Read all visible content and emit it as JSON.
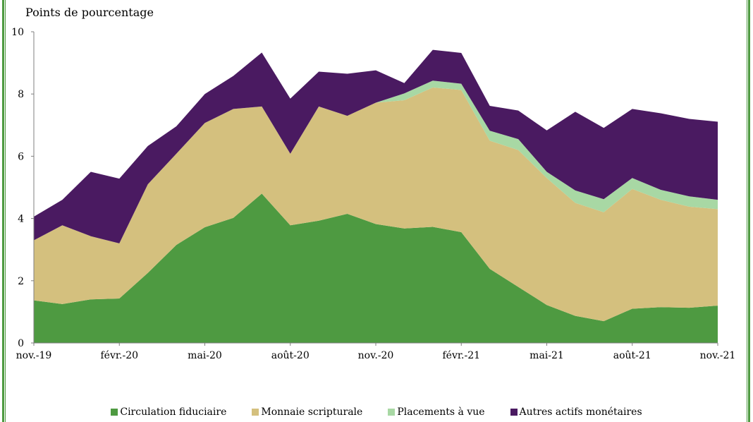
{
  "chart_data": {
    "type": "area",
    "stacked": true,
    "ylabel": "Points de pourcentage",
    "ylim": [
      0,
      10
    ],
    "yticks": [
      0,
      2,
      4,
      6,
      8,
      10
    ],
    "x_tick_labels": [
      "nov.-19",
      "févr.-20",
      "mai-20",
      "août-20",
      "nov.-20",
      "févr.-21",
      "mai-21",
      "août-21",
      "nov.-21"
    ],
    "x_tick_indices": [
      0,
      3,
      6,
      9,
      12,
      15,
      18,
      21,
      24
    ],
    "x": [
      "nov.-19",
      "déc.-19",
      "janv.-20",
      "févr.-20",
      "mars-20",
      "avr.-20",
      "mai-20",
      "juin-20",
      "juil.-20",
      "août-20",
      "sept.-20",
      "oct.-20",
      "nov.-20",
      "déc.-20",
      "janv.-21",
      "févr.-21",
      "mars-21",
      "avr.-21",
      "mai-21",
      "juin-21",
      "juil.-21",
      "août-21",
      "sept.-21",
      "oct.-21",
      "nov.-21"
    ],
    "series": [
      {
        "name": "Circulation fiduciaire",
        "color": "#4e9a41",
        "values": [
          1.37,
          1.25,
          1.4,
          1.43,
          2.25,
          3.15,
          3.72,
          4.02,
          4.8,
          3.78,
          3.93,
          4.15,
          3.82,
          3.68,
          3.73,
          3.56,
          2.38,
          1.8,
          1.22,
          0.87,
          0.7,
          1.1,
          1.15,
          1.13,
          1.2
        ]
      },
      {
        "name": "Monnaie scripturale",
        "color": "#d4c07e",
        "values": [
          1.93,
          2.53,
          2.03,
          1.77,
          2.85,
          2.93,
          3.35,
          3.5,
          2.8,
          2.3,
          3.67,
          3.15,
          3.9,
          4.12,
          4.48,
          4.57,
          4.12,
          4.4,
          4.08,
          3.63,
          3.5,
          3.85,
          3.45,
          3.25,
          3.1
        ]
      },
      {
        "name": "Placements à vue",
        "color": "#a8d8a4",
        "values": [
          0,
          0,
          0,
          0,
          0,
          0,
          0,
          0,
          0,
          0,
          0,
          0,
          0,
          0.22,
          0.22,
          0.2,
          0.32,
          0.35,
          0.2,
          0.4,
          0.42,
          0.35,
          0.32,
          0.33,
          0.3
        ]
      },
      {
        "name": "Autres actifs monétaires",
        "color": "#4a1a61",
        "values": [
          0.76,
          0.82,
          2.07,
          2.08,
          1.23,
          0.88,
          0.93,
          1.06,
          1.73,
          1.77,
          1.12,
          1.35,
          1.04,
          0.33,
          0.99,
          0.99,
          0.8,
          0.92,
          1.33,
          2.53,
          2.29,
          2.22,
          2.46,
          2.49,
          2.51
        ]
      }
    ],
    "legend_position": "bottom",
    "grid": false
  }
}
